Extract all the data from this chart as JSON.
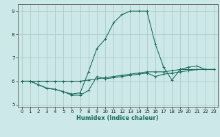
{
  "xlabel": "Humidex (Indice chaleur)",
  "bg_color": "#cce8e8",
  "grid_color": "#b0c8c8",
  "line_color": "#1a6b5a",
  "xlim": [
    -0.5,
    23.5
  ],
  "ylim": [
    4.9,
    9.3
  ],
  "xticks": [
    0,
    1,
    2,
    3,
    4,
    5,
    6,
    7,
    8,
    9,
    10,
    11,
    12,
    13,
    14,
    15,
    16,
    17,
    18,
    19,
    20,
    21,
    22,
    23
  ],
  "yticks": [
    5,
    6,
    7,
    8,
    9
  ],
  "lines": [
    {
      "x": [
        0,
        1,
        2,
        3,
        4,
        5,
        6,
        7,
        8,
        9,
        10,
        11,
        12,
        13,
        14,
        15,
        16,
        17,
        18,
        19,
        20,
        21,
        22,
        23
      ],
      "y": [
        6.0,
        6.0,
        6.0,
        6.0,
        6.0,
        6.0,
        6.0,
        6.0,
        6.05,
        6.1,
        6.15,
        6.2,
        6.25,
        6.3,
        6.35,
        6.4,
        6.4,
        6.4,
        6.45,
        6.5,
        6.5,
        6.5,
        6.5,
        6.5
      ]
    },
    {
      "x": [
        0,
        1,
        2,
        3,
        4,
        5,
        6,
        7,
        8,
        9,
        10,
        11,
        12,
        13,
        14,
        15,
        16,
        17,
        18,
        19,
        20,
        21,
        22,
        23
      ],
      "y": [
        6.0,
        6.0,
        5.85,
        5.7,
        5.65,
        5.55,
        5.4,
        5.4,
        5.6,
        6.2,
        6.1,
        6.15,
        6.2,
        6.25,
        6.3,
        6.35,
        6.2,
        6.3,
        6.35,
        6.4,
        6.45,
        6.5,
        6.5,
        6.5
      ]
    },
    {
      "x": [
        0,
        1,
        2,
        3,
        4,
        5,
        6,
        7,
        8,
        9,
        10,
        11,
        12,
        13,
        14,
        15,
        16,
        17,
        18,
        19,
        20,
        21,
        22,
        23
      ],
      "y": [
        6.0,
        6.0,
        5.85,
        5.7,
        5.65,
        5.55,
        5.45,
        5.5,
        6.4,
        7.4,
        7.8,
        8.5,
        8.85,
        9.0,
        9.0,
        9.0,
        7.6,
        6.6,
        6.05,
        6.5,
        6.6,
        6.65,
        6.5,
        6.5
      ]
    }
  ]
}
